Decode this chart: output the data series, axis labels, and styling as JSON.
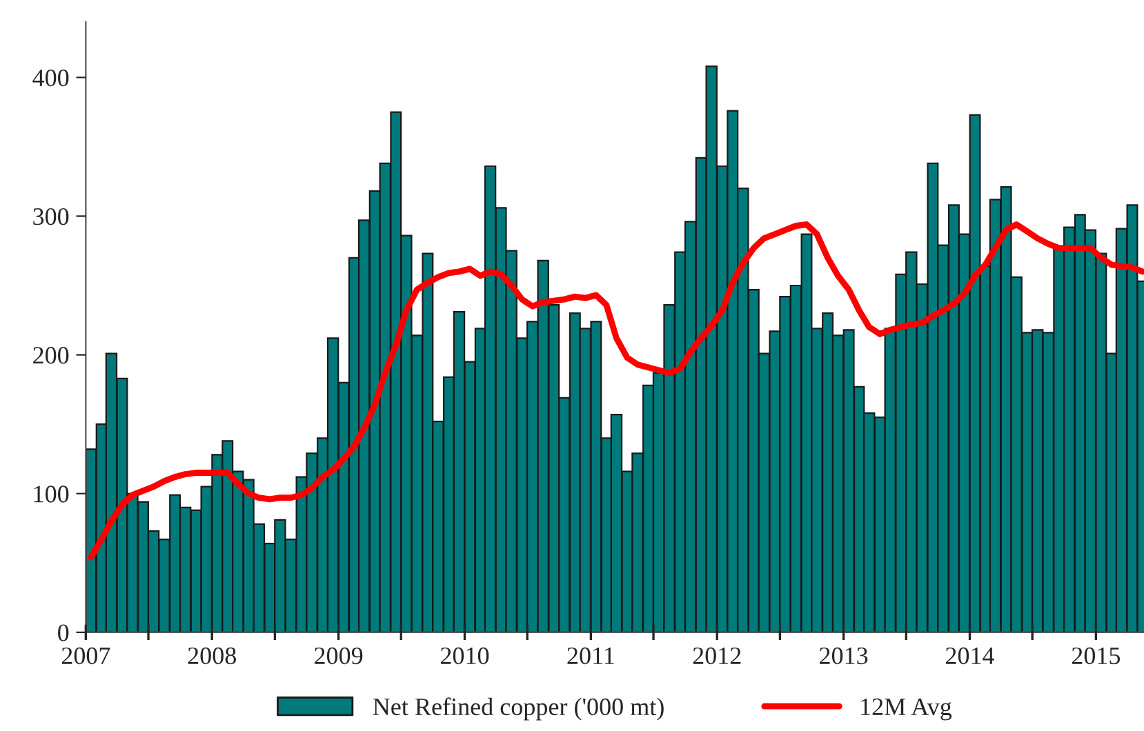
{
  "chart_data": {
    "type": "bar",
    "x": [
      "2007-01-16",
      "2007-02-15",
      "2007-03-16",
      "2007-04-16",
      "2007-05-16",
      "2007-06-16",
      "2007-07-16",
      "2007-08-16",
      "2007-09-16",
      "2007-10-16",
      "2007-11-16",
      "2007-12-16",
      "2008-01-16",
      "2008-02-15",
      "2008-03-16",
      "2008-04-16",
      "2008-05-16",
      "2008-06-16",
      "2008-07-16",
      "2008-08-16",
      "2008-09-16",
      "2008-10-16",
      "2008-11-16",
      "2008-12-16",
      "2009-01-16",
      "2009-02-15",
      "2009-03-16",
      "2009-04-16",
      "2009-05-16",
      "2009-06-16",
      "2009-07-16",
      "2009-08-16",
      "2009-09-16",
      "2009-10-16",
      "2009-11-16",
      "2009-12-16",
      "2010-01-16",
      "2010-02-15",
      "2010-03-16",
      "2010-04-16",
      "2010-05-16",
      "2010-06-16",
      "2010-07-16",
      "2010-08-16",
      "2010-09-16",
      "2010-10-16",
      "2010-11-16",
      "2010-12-16",
      "2011-01-16",
      "2011-02-15",
      "2011-03-16",
      "2011-04-16",
      "2011-05-16",
      "2011-06-16",
      "2011-07-16",
      "2011-08-16",
      "2011-09-16",
      "2011-10-16",
      "2011-11-16",
      "2011-12-16",
      "2012-01-16",
      "2012-02-15",
      "2012-03-16",
      "2012-04-16",
      "2012-05-16",
      "2012-06-16",
      "2012-07-16",
      "2012-08-16",
      "2012-09-16",
      "2012-10-16",
      "2012-11-16",
      "2012-12-16",
      "2013-01-16",
      "2013-02-15",
      "2013-03-16",
      "2013-04-16",
      "2013-05-16",
      "2013-06-16",
      "2013-07-16",
      "2013-08-16",
      "2013-09-16",
      "2013-10-16",
      "2013-11-16",
      "2013-12-16",
      "2014-01-16",
      "2014-02-15",
      "2014-03-16",
      "2014-04-16",
      "2014-05-16",
      "2014-06-16",
      "2014-07-16",
      "2014-08-16",
      "2014-09-16",
      "2014-10-16",
      "2014-11-16",
      "2014-12-16",
      "2015-01-16",
      "2015-02-15",
      "2015-03-16",
      "2015-04-16",
      "2015-05-16"
    ],
    "series": [
      {
        "name": "Net Refined copper ('000 mt)",
        "color": "#007a7a",
        "values": [
          132,
          150,
          201,
          183,
          100,
          94,
          73,
          67,
          99,
          90,
          88,
          105,
          128,
          138,
          116,
          110,
          78,
          64,
          81,
          67,
          112,
          129,
          140,
          212,
          180,
          270,
          297,
          318,
          338,
          375,
          286,
          214,
          273,
          152,
          184,
          231,
          195,
          219,
          336,
          306,
          275,
          212,
          224,
          268,
          236,
          169,
          230,
          219,
          224,
          140,
          157,
          116,
          129,
          178,
          187,
          236,
          274,
          296,
          342,
          408,
          336,
          376,
          320,
          247,
          201,
          217,
          242,
          250,
          287,
          219,
          230,
          214,
          218,
          177,
          158,
          155,
          219,
          258,
          274,
          251,
          338,
          279,
          308,
          287,
          373,
          264,
          312,
          321,
          256,
          216,
          218,
          216,
          277,
          292,
          301,
          290,
          273,
          201,
          291,
          308,
          253
        ]
      },
      {
        "name": "12M Avg",
        "type": "line",
        "color": "#ff0000",
        "values": [
          54,
          67,
          80,
          92,
          99,
          102,
          105,
          109,
          112,
          114,
          115,
          115,
          115,
          115,
          107,
          100,
          97,
          96,
          97,
          97,
          99,
          104,
          112,
          117,
          125,
          134,
          147,
          164,
          187,
          207,
          232,
          247,
          252,
          256,
          259,
          260,
          262,
          257,
          260,
          258,
          250,
          240,
          235,
          238,
          239,
          240,
          242,
          241,
          243,
          236,
          212,
          198,
          193,
          191,
          189,
          187,
          190,
          202,
          212,
          221,
          232,
          252,
          266,
          277,
          284,
          287,
          290,
          293,
          294,
          287,
          270,
          257,
          247,
          232,
          220,
          215,
          218,
          220,
          222,
          223,
          228,
          232,
          237,
          244,
          257,
          265,
          277,
          290,
          294,
          289,
          284,
          280,
          277,
          277,
          277,
          277,
          270,
          265,
          264,
          263,
          260
        ]
      }
    ],
    "xlim": [
      "2007-01-01",
      "2015-05-20"
    ],
    "xticks": [
      {
        "value": "2007-01-01",
        "label": "2007"
      },
      {
        "value": "2007-07-01",
        "label": null
      },
      {
        "value": "2008-01-01",
        "label": "2008"
      },
      {
        "value": "2008-07-01",
        "label": null
      },
      {
        "value": "2009-01-01",
        "label": "2009"
      },
      {
        "value": "2009-07-01",
        "label": null
      },
      {
        "value": "2010-01-01",
        "label": "2010"
      },
      {
        "value": "2010-07-01",
        "label": null
      },
      {
        "value": "2011-01-01",
        "label": "2011"
      },
      {
        "value": "2011-07-01",
        "label": null
      },
      {
        "value": "2012-01-01",
        "label": "2012"
      },
      {
        "value": "2012-07-01",
        "label": null
      },
      {
        "value": "2013-01-01",
        "label": "2013"
      },
      {
        "value": "2013-07-01",
        "label": null
      },
      {
        "value": "2014-01-01",
        "label": "2014"
      },
      {
        "value": "2014-07-01",
        "label": null
      },
      {
        "value": "2015-01-01",
        "label": "2015"
      }
    ],
    "ylim": [
      0,
      440
    ],
    "yticks": [
      0,
      100,
      200,
      300,
      400
    ],
    "grid": false,
    "legend": "bottom"
  }
}
